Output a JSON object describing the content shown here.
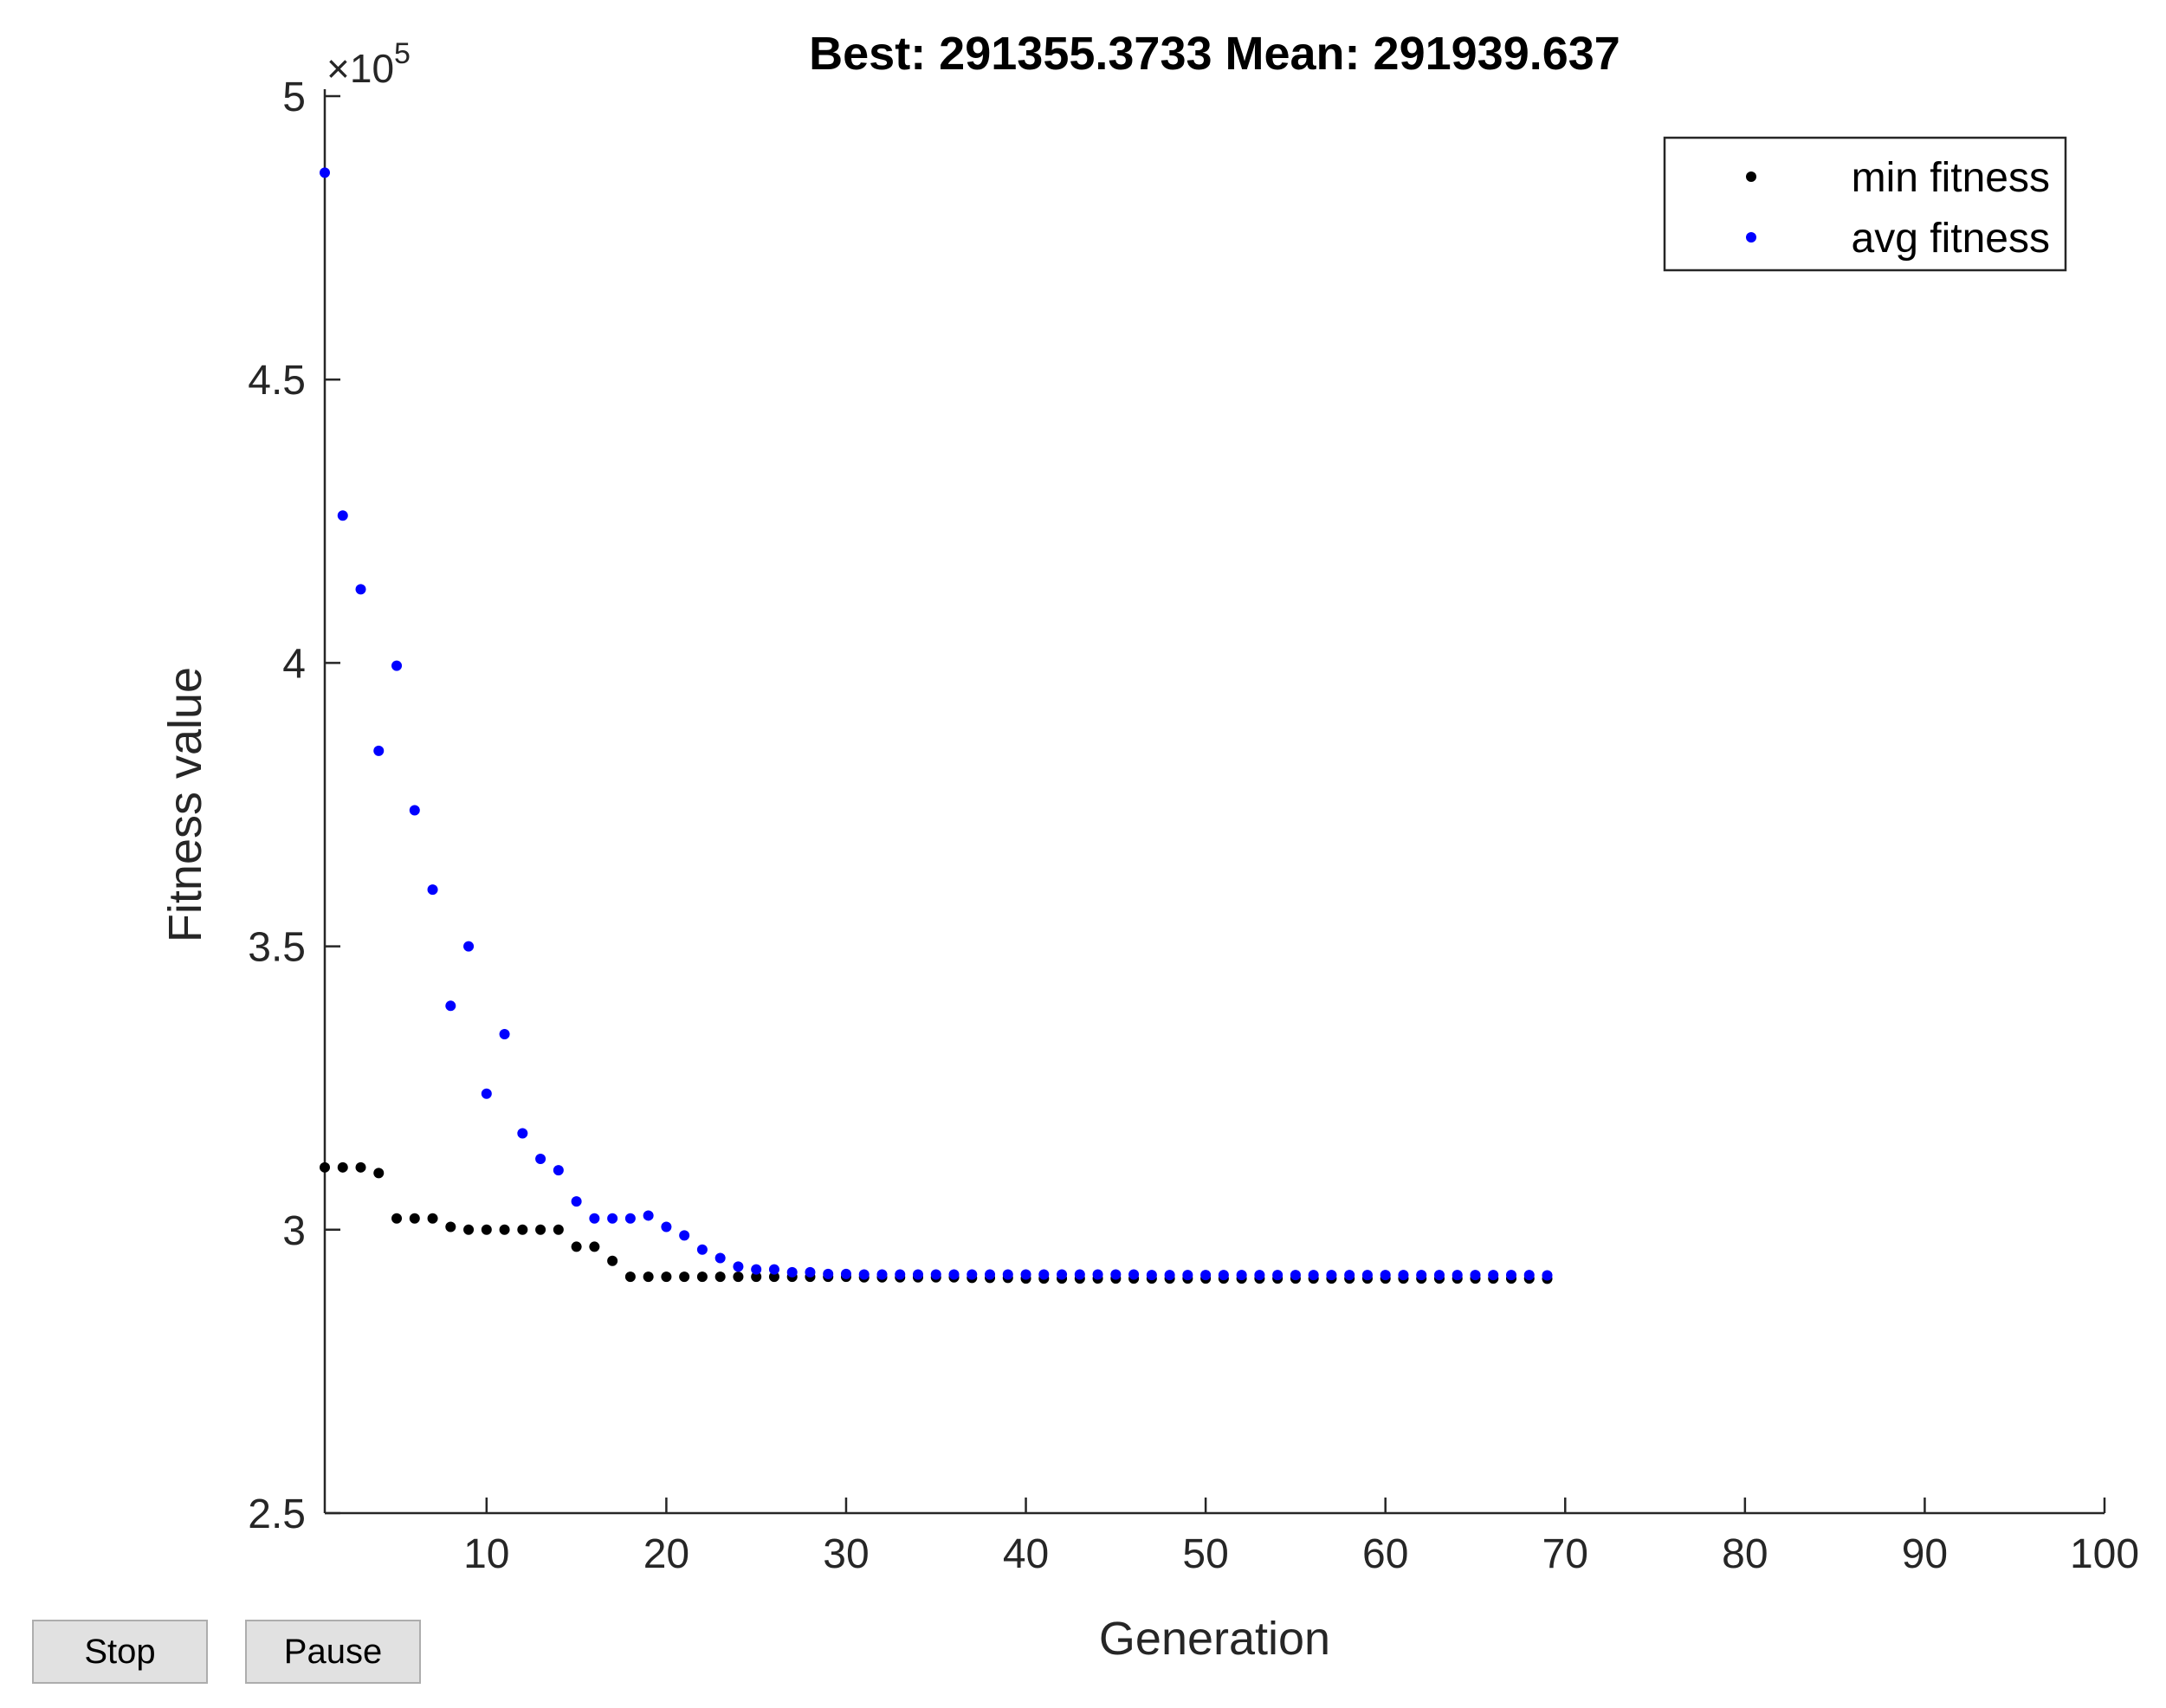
{
  "controls": {
    "stop_label": "Stop",
    "pause_label": "Pause"
  },
  "chart_data": {
    "type": "scatter",
    "title": "Best: 291355.3733 Mean: 291939.637",
    "xlabel": "Generation",
    "ylabel": "Fitness value",
    "y_exponent_label": "×10",
    "y_exponent_power": "5",
    "xlim": [
      1,
      100
    ],
    "ylim": [
      250000,
      500000
    ],
    "xticks": [
      10,
      20,
      30,
      40,
      50,
      60,
      70,
      80,
      90,
      100
    ],
    "xtick_labels": [
      "10",
      "20",
      "30",
      "40",
      "50",
      "60",
      "70",
      "80",
      "90",
      "100"
    ],
    "yticks": [
      250000,
      300000,
      350000,
      400000,
      450000,
      500000
    ],
    "ytick_labels": [
      "2.5",
      "3",
      "3.5",
      "4",
      "4.5",
      "5"
    ],
    "legend_position": "top-right",
    "grid": false,
    "series": [
      {
        "name": "min fitness",
        "color": "#000000",
        "x": [
          1,
          2,
          3,
          4,
          5,
          6,
          7,
          8,
          9,
          10,
          11,
          12,
          13,
          14,
          15,
          16,
          17,
          18,
          19,
          20,
          21,
          22,
          23,
          24,
          25,
          26,
          27,
          28,
          29,
          30,
          31,
          32,
          33,
          34,
          35,
          36,
          37,
          38,
          39,
          40,
          41,
          42,
          43,
          44,
          45,
          46,
          47,
          48,
          49,
          50,
          51,
          52,
          53,
          54,
          55,
          56,
          57,
          58,
          59,
          60,
          61,
          62,
          63,
          64,
          65,
          66,
          67,
          68,
          69
        ],
        "y": [
          311000,
          311000,
          311000,
          310000,
          302000,
          302000,
          302000,
          300500,
          300000,
          300000,
          300000,
          300000,
          300000,
          300000,
          297000,
          297000,
          294500,
          291700,
          291700,
          291700,
          291700,
          291700,
          291700,
          291700,
          291700,
          291700,
          291700,
          291700,
          291700,
          291700,
          291600,
          291600,
          291600,
          291600,
          291600,
          291600,
          291500,
          291500,
          291500,
          291400,
          291400,
          291400,
          291400,
          291400,
          291400,
          291400,
          291400,
          291400,
          291400,
          291400,
          291400,
          291400,
          291400,
          291400,
          291400,
          291400,
          291400,
          291400,
          291400,
          291400,
          291400,
          291400,
          291400,
          291400,
          291400,
          291400,
          291400,
          291400,
          291355
        ]
      },
      {
        "name": "avg fitness",
        "color": "#0000ff",
        "x": [
          1,
          2,
          3,
          4,
          5,
          6,
          7,
          8,
          9,
          10,
          11,
          12,
          13,
          14,
          15,
          16,
          17,
          18,
          19,
          20,
          21,
          22,
          23,
          24,
          25,
          26,
          27,
          28,
          29,
          30,
          31,
          32,
          33,
          34,
          35,
          36,
          37,
          38,
          39,
          40,
          41,
          42,
          43,
          44,
          45,
          46,
          47,
          48,
          49,
          50,
          51,
          52,
          53,
          54,
          55,
          56,
          57,
          58,
          59,
          60,
          61,
          62,
          63,
          64,
          65,
          66,
          67,
          68,
          69
        ],
        "y": [
          486500,
          426000,
          413000,
          384500,
          399500,
          374000,
          360000,
          339500,
          350000,
          324000,
          334500,
          317000,
          312500,
          310500,
          305000,
          302000,
          302000,
          302000,
          302500,
          300500,
          299000,
          296500,
          295000,
          293500,
          293000,
          293000,
          292500,
          292500,
          292200,
          292200,
          292100,
          292100,
          292100,
          292100,
          292100,
          292100,
          292100,
          292100,
          292100,
          292100,
          292100,
          292100,
          292100,
          292100,
          292100,
          292100,
          292000,
          292000,
          292000,
          292000,
          292000,
          292000,
          292000,
          292000,
          292000,
          292000,
          292000,
          292000,
          292000,
          292000,
          292000,
          292000,
          292000,
          292000,
          292000,
          292000,
          292000,
          292000,
          291940
        ]
      }
    ]
  }
}
